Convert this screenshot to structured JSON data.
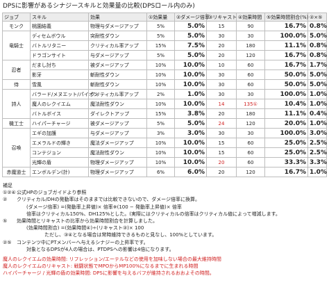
{
  "title": "DPSに影響があるシナジースキルと効果量の比較(DPSロール内のみ)",
  "headers": [
    "ジョブ",
    "スキル",
    "効果",
    "①効果量",
    "②ダメージ倍率",
    "③リキャスト",
    "④効果時間",
    "⑤効果時間割合(%)",
    "②×⑤"
  ],
  "rows": [
    {
      "job": "モンク",
      "skill": "桃園結義",
      "effect": "物理与ダメージアップ",
      "eff": "5%",
      "dmg": "5.0%",
      "recast": "15",
      "dur": "90",
      "ratio": "16.7%",
      "prod": "0.8%"
    },
    {
      "job": "竜騎士",
      "skill": "ディセムボウル",
      "effect": "突耐性ダウン",
      "eff": "5%",
      "dmg": "5.0%",
      "recast": "30",
      "dur": "30",
      "ratio": "100.0%",
      "prod": "5.0%"
    },
    {
      "job": "",
      "skill": "バトルリタニー",
      "effect": "クリティカル率アップ",
      "eff": "15%",
      "dmg": "7.5%",
      "recast": "20",
      "dur": "180",
      "ratio": "11.1%",
      "prod": "0.8%"
    },
    {
      "job": "",
      "skill": "ドラゴンサイト",
      "effect": "与ダメージアップ",
      "eff": "5%",
      "dmg": "5.0%",
      "recast": "20",
      "dur": "120",
      "ratio": "16.7%",
      "prod": "0.8%"
    },
    {
      "job": "忍者",
      "skill": "だまし討ち",
      "effect": "被ダメージアップ",
      "eff": "10%",
      "dmg": "10.0%",
      "recast": "10",
      "dur": "60",
      "ratio": "16.7%",
      "prod": "1.7%"
    },
    {
      "job": "",
      "skill": "影牙",
      "effect": "斬耐性ダウン",
      "eff": "10%",
      "dmg": "10.0%",
      "recast": "30",
      "dur": "60",
      "ratio": "50.0%",
      "prod": "5.0%"
    },
    {
      "job": "侍",
      "skill": "雪風",
      "effect": "斬耐性ダウン",
      "eff": "10%",
      "dmg": "10.0%",
      "recast": "30",
      "dur": "60",
      "ratio": "50.0%",
      "prod": "5.0%"
    },
    {
      "job": "詩人",
      "skill": "バラード/メヌエット/パイオン",
      "effect": "クリティカル率アップ",
      "eff": "2%",
      "dmg": "1.0%",
      "recast": "30",
      "dur": "30",
      "ratio": "100.0%",
      "prod": "1.0%"
    },
    {
      "job": "",
      "skill": "魔人のレクイエム",
      "effect": "魔法耐性ダウン",
      "eff": "10%",
      "dmg": "10.0%",
      "recast": "14",
      "dur": "135①",
      "ratio": "10.4%",
      "prod": "1.0%",
      "red": true
    },
    {
      "job": "",
      "skill": "バトルボイス",
      "effect": "ダイレクトアップ",
      "eff": "15%",
      "dmg": "3.8%",
      "recast": "20",
      "dur": "180",
      "ratio": "11.1%",
      "prod": "0.4%"
    },
    {
      "job": "機工士",
      "skill": "ハイパーチャージ",
      "effect": "被ダメージアップ",
      "eff": "5%",
      "dmg": "5.0%",
      "recast": "24",
      "dur": "120",
      "ratio": "20.0%",
      "prod": "1.0%",
      "red": true
    },
    {
      "job": "召喚",
      "skill": "エギの加護",
      "effect": "与ダメージアップ",
      "eff": "3%",
      "dmg": "3.0%",
      "recast": "30",
      "dur": "30",
      "ratio": "100.0%",
      "prod": "3.0%"
    },
    {
      "job": "",
      "skill": "エメラルドの輝き",
      "effect": "魔法ダメージアップ",
      "eff": "10%",
      "dmg": "10.0%",
      "recast": "15",
      "dur": "60",
      "ratio": "25.0%",
      "prod": "2.5%"
    },
    {
      "job": "",
      "skill": "コンテジョン",
      "effect": "魔法耐性ダウン",
      "eff": "10%",
      "dmg": "10.0%",
      "recast": "15",
      "dur": "60",
      "ratio": "25.0%",
      "prod": "2.5%"
    },
    {
      "job": "",
      "skill": "光輝の盾",
      "effect": "物理ダメージアップ",
      "eff": "10%",
      "dmg": "10.0%",
      "recast": "20",
      "dur": "60",
      "ratio": "33.3%",
      "prod": "3.3%",
      "redRecast": true
    },
    {
      "job": "赤魔道士",
      "skill": "エンボルデン(計)",
      "effect": "物理ダメージアップ",
      "eff": "6%",
      "dmg": "6.0%",
      "recast": "20",
      "dur": "120",
      "ratio": "16.7%",
      "prod": "1.0%"
    }
  ],
  "notes": {
    "heading": "補足",
    "n1": {
      "k": "①②④",
      "text": "公式HPのジョブガイドより参照"
    },
    "n2": {
      "k": "②",
      "text": "クリティカル/DHの発動率はそのままでは比較できないので、ダメージ倍率に換算。"
    },
    "n2a": "(ダメージ倍率) =(発動率上昇値)× 倍率※(100 − 発動率上昇値)× 倍率",
    "n2b": "倍率はクリティカル150%、DH125%とした。(実際にはクリティカルの倍率はクリティカル値によって増減します。",
    "n3": {
      "k": "⑤",
      "text": "効果時間とリキャストの比率から効果時間割合を計算しました。"
    },
    "n3a": "(効果時間割合) =(効果時間④)÷(リキャスト③)× 100",
    "n3b": "ただし、③④となる場合は常時維持できるものと見なし、100%としています。",
    "n4": {
      "k": "②⑤",
      "text": "コンテンツ中にPTメンバーへ与えるシナジーの上昇率です。"
    },
    "n4a": "対象となるDPSが4人の場合は、PTDPSへの影響は4倍になります。",
    "w1": "魔人のレクイエムの効果時間: リフレッション/エーテルなどの使用を加味しない場合の最大維持時間",
    "w2": "魔人のレクイエムのリキャスト: 戦闘状態でMPOからMP100%になるまでに生まれる時間",
    "w3": "ハイパーチャージ / 光輝の盾の効果時間: DPSに影響を与えるバフが維持されるおおよその時間。"
  }
}
